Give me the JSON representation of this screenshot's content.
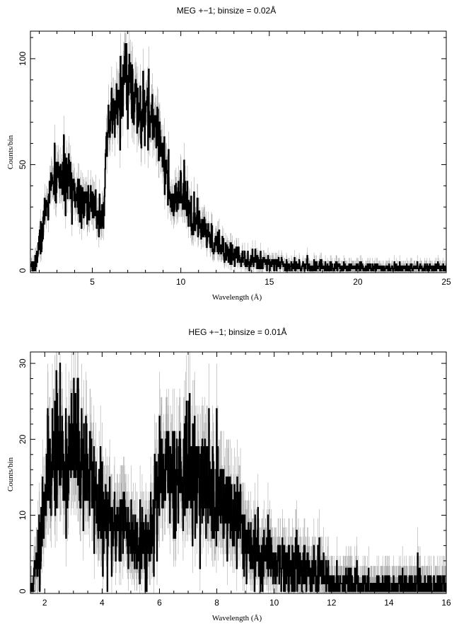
{
  "chart_data": [
    {
      "type": "line",
      "title": "MEG +−1; binsize = 0.02Å",
      "xlabel": "Wavelength (Å)",
      "ylabel": "Counts/bin",
      "xlim": [
        1.5,
        25
      ],
      "ylim": [
        -1,
        113
      ],
      "xticks": [
        5,
        10,
        15,
        20,
        25
      ],
      "yticks": [
        0,
        50,
        100
      ],
      "grid": false,
      "legend": "none",
      "colors": {
        "data": "#000000",
        "errors": "#aaaaaa"
      },
      "series": [
        {
          "x": [
            1.6,
            1.8,
            2.0,
            2.2,
            2.4,
            2.6,
            2.8,
            3.0,
            3.2,
            3.4,
            3.6,
            3.8,
            4.0,
            4.2,
            4.4,
            4.6,
            4.8,
            5.0,
            5.2,
            5.4,
            5.6,
            5.8,
            6.0,
            6.2,
            6.4,
            6.6,
            6.8,
            7.0,
            7.2,
            7.4,
            7.6,
            7.8,
            8.0,
            8.2,
            8.4,
            8.6,
            8.8,
            9.0,
            9.2,
            9.4,
            9.6,
            9.8,
            10.0,
            10.2,
            10.4,
            10.6,
            10.8,
            11.0,
            11.2,
            11.4,
            11.6,
            11.8,
            12.0,
            12.4,
            12.8,
            13.2,
            13.6,
            14.0,
            14.5,
            15.0,
            15.5,
            16.0,
            16.5,
            17.0,
            18.0,
            19.0,
            20.0,
            21.0,
            22.0,
            23.0,
            24.0,
            25.0
          ],
          "y": [
            1,
            4,
            12,
            20,
            30,
            37,
            41,
            44,
            45,
            43,
            42,
            40,
            38,
            36,
            35,
            34,
            31,
            29,
            28,
            27,
            28,
            52,
            70,
            73,
            77,
            84,
            90,
            93,
            86,
            78,
            74,
            72,
            73,
            75,
            71,
            68,
            66,
            57,
            45,
            32,
            30,
            33,
            36,
            34,
            30,
            26,
            24,
            22,
            20,
            17,
            15,
            14,
            12,
            10,
            8,
            7,
            6,
            5,
            4,
            4,
            3,
            3,
            2.5,
            2,
            2,
            1.5,
            1.5,
            1,
            1,
            1,
            1,
            1
          ]
        }
      ]
    },
    {
      "type": "line",
      "title": "HEG +−1; binsize = 0.01Å",
      "xlabel": "Wavelength (Å)",
      "ylabel": "Counts/bin",
      "xlim": [
        1.5,
        16
      ],
      "ylim": [
        -0.3,
        31.5
      ],
      "xticks": [
        2,
        4,
        6,
        8,
        10,
        12,
        14,
        16
      ],
      "yticks": [
        0,
        10,
        20,
        30
      ],
      "grid": false,
      "legend": "none",
      "colors": {
        "data": "#000000",
        "errors": "#aaaaaa"
      },
      "series": [
        {
          "x": [
            1.5,
            1.6,
            1.7,
            1.8,
            2.0,
            2.2,
            2.4,
            2.6,
            2.8,
            3.0,
            3.2,
            3.4,
            3.6,
            3.8,
            4.0,
            4.2,
            4.4,
            4.6,
            4.8,
            5.0,
            5.2,
            5.4,
            5.6,
            5.8,
            6.0,
            6.2,
            6.4,
            6.6,
            6.8,
            7.0,
            7.2,
            7.4,
            7.6,
            7.8,
            8.0,
            8.2,
            8.4,
            8.6,
            8.8,
            9.0,
            9.2,
            9.4,
            9.6,
            9.8,
            10.0,
            10.2,
            10.4,
            10.6,
            10.8,
            11.0,
            11.2,
            11.4,
            11.6,
            11.8,
            12.0,
            12.2,
            12.4,
            12.6,
            12.8,
            13.0,
            13.5,
            14.0,
            14.5,
            15.0,
            15.5,
            16.0
          ],
          "y": [
            0,
            1,
            3,
            6,
            13,
            17,
            19,
            18,
            17,
            19,
            18,
            17,
            15,
            12,
            10,
            9,
            8,
            10,
            9,
            7,
            7,
            7,
            6,
            11,
            14,
            15,
            16,
            15,
            17,
            16,
            15,
            15,
            14,
            13,
            13,
            12,
            11,
            10,
            9,
            7,
            6,
            5,
            5,
            5,
            4,
            4,
            3,
            3,
            3,
            3,
            3,
            2,
            2,
            2,
            1,
            1,
            1,
            1,
            1,
            0.5,
            0.5,
            0.5,
            0.5,
            0.5,
            0.5,
            0.5
          ]
        }
      ]
    }
  ]
}
